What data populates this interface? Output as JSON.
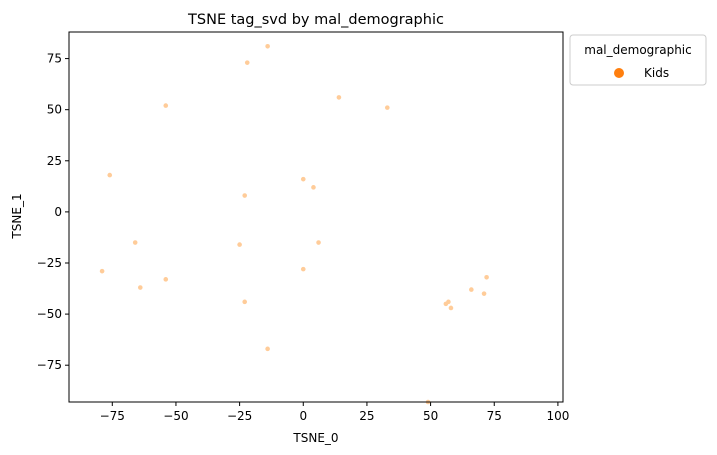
{
  "chart_data": {
    "type": "scatter",
    "title": "TSNE tag_svd by mal_demographic",
    "xlabel": "TSNE_0",
    "ylabel": "TSNE_1",
    "xlim": [
      -92,
      102
    ],
    "ylim": [
      -93,
      88
    ],
    "xticks": [
      -75,
      -50,
      -25,
      0,
      25,
      50,
      75,
      100
    ],
    "yticks": [
      -75,
      -50,
      -25,
      0,
      25,
      50,
      75
    ],
    "grid": false,
    "legend": {
      "title": "mal_demographic",
      "placement": "outside-top-right",
      "entries": [
        {
          "label": "Kids",
          "color": "#ff7f0e"
        }
      ]
    },
    "series": [
      {
        "name": "Kids",
        "color": "#ff7f0e",
        "point_color": "#ffcc99",
        "points": [
          [
            -14,
            81
          ],
          [
            -22,
            73
          ],
          [
            -54,
            52
          ],
          [
            14,
            56
          ],
          [
            33,
            51
          ],
          [
            -76,
            18
          ],
          [
            0,
            16
          ],
          [
            4,
            12
          ],
          [
            -23,
            8
          ],
          [
            -66,
            -15
          ],
          [
            -25,
            -16
          ],
          [
            6,
            -15
          ],
          [
            -79,
            -29
          ],
          [
            0,
            -28
          ],
          [
            -54,
            -33
          ],
          [
            -64,
            -37
          ],
          [
            -23,
            -44
          ],
          [
            -14,
            -67
          ],
          [
            56,
            -45
          ],
          [
            57,
            -44
          ],
          [
            58,
            -47
          ],
          [
            66,
            -38
          ],
          [
            71,
            -40
          ],
          [
            72,
            -32
          ],
          [
            49,
            -93
          ]
        ]
      }
    ]
  }
}
